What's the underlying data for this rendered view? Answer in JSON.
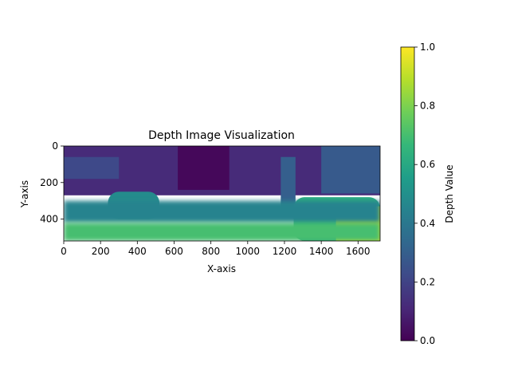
{
  "chart_data": {
    "type": "heatmap",
    "title": "Depth Image Visualization",
    "xlabel": "X-axis",
    "ylabel": "Y-axis",
    "xlim": [
      0,
      1720
    ],
    "ylim": [
      520,
      0
    ],
    "xticks": [
      0,
      200,
      400,
      600,
      800,
      1000,
      1200,
      1400,
      1600
    ],
    "yticks": [
      0,
      200,
      400
    ],
    "colorbar": {
      "label": "Depth Value",
      "range": [
        0.0,
        1.0
      ],
      "ticks": [
        "0.0",
        "0.2",
        "0.4",
        "0.6",
        "0.8",
        "1.0"
      ],
      "colormap": "viridis",
      "colormap_stops": [
        "#440154",
        "#482878",
        "#3e4a89",
        "#31688e",
        "#26828e",
        "#1f9e89",
        "#35b779",
        "#6ece58",
        "#b5de2b",
        "#fde725"
      ]
    },
    "scene_regions": [
      {
        "name": "background",
        "x": [
          0,
          1720
        ],
        "y": [
          0,
          270
        ],
        "value": 0.12
      },
      {
        "name": "dark-center-top",
        "x": [
          620,
          900
        ],
        "y": [
          0,
          240
        ],
        "value": 0.02
      },
      {
        "name": "left-upper-band",
        "x": [
          0,
          300
        ],
        "y": [
          60,
          180
        ],
        "value": 0.22
      },
      {
        "name": "tree-trunk",
        "x": [
          1180,
          1260
        ],
        "y": [
          60,
          360
        ],
        "value": 0.3
      },
      {
        "name": "right-upper-building",
        "x": [
          1400,
          1720
        ],
        "y": [
          0,
          260
        ],
        "value": 0.28
      },
      {
        "name": "left-mound",
        "x": [
          240,
          520
        ],
        "y": [
          250,
          400
        ],
        "value": 0.48
      },
      {
        "name": "right-mound",
        "x": [
          1250,
          1720
        ],
        "y": [
          280,
          520
        ],
        "value": 0.62
      },
      {
        "name": "right-bright-foreground",
        "x": [
          1480,
          1720
        ],
        "y": [
          330,
          520
        ],
        "value": 0.95
      },
      {
        "name": "ground-mid",
        "x": [
          0,
          1720
        ],
        "y": [
          300,
          420
        ],
        "value": 0.45
      },
      {
        "name": "ground-near",
        "x": [
          0,
          1720
        ],
        "y": [
          420,
          520
        ],
        "value": 0.7
      }
    ]
  }
}
